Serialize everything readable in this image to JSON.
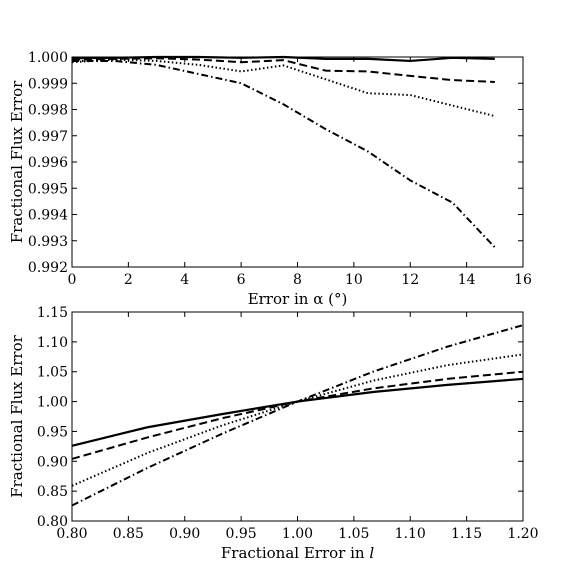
{
  "chart_data": [
    {
      "type": "line",
      "title": "",
      "xlabel_prefix": "Error in ",
      "xlabel_symbol": "α",
      "xlabel_suffix": " (°)",
      "ylabel": "Fractional Flux Error",
      "xlim": [
        0,
        16
      ],
      "ylim": [
        0.992,
        1.0
      ],
      "xticks": [
        0,
        2,
        4,
        6,
        8,
        10,
        12,
        14,
        16
      ],
      "yticks": [
        0.992,
        0.993,
        0.994,
        0.995,
        0.996,
        0.997,
        0.998,
        0.999,
        1.0
      ],
      "xtick_labels": [
        "0",
        "2",
        "4",
        "6",
        "8",
        "10",
        "12",
        "14",
        "16"
      ],
      "ytick_labels": [
        "0.992",
        "0.993",
        "0.994",
        "0.995",
        "0.996",
        "0.997",
        "0.998",
        "0.999",
        "1.000"
      ],
      "grid": false,
      "series": [
        {
          "style": "solid",
          "x": [
            0,
            1.5,
            3,
            4.5,
            6,
            7.5,
            9,
            10.5,
            12,
            13.5,
            15
          ],
          "y": [
            0.99995,
            0.99997,
            1.0,
            1.0,
            0.99997,
            1.0,
            0.99993,
            0.99993,
            0.99985,
            0.99997,
            0.99993
          ]
        },
        {
          "style": "dashed",
          "x": [
            0,
            1.5,
            3,
            4.5,
            6,
            7.5,
            9,
            10.5,
            12,
            13.5,
            15
          ],
          "y": [
            0.9999,
            0.99993,
            0.99995,
            0.9999,
            0.9998,
            0.99988,
            0.99948,
            0.99945,
            0.99928,
            0.99912,
            0.99905
          ]
        },
        {
          "style": "dotted",
          "x": [
            0,
            1.5,
            3,
            4.5,
            6,
            7.5,
            9,
            10.5,
            12,
            13.5,
            15
          ],
          "y": [
            0.9998,
            0.9999,
            0.99985,
            0.9997,
            0.99945,
            0.99968,
            0.99915,
            0.99862,
            0.99855,
            0.99815,
            0.99775
          ]
        },
        {
          "style": "dashdot",
          "x": [
            0,
            1.5,
            3,
            4.5,
            6,
            7.5,
            9,
            10.5,
            12,
            13.5,
            15
          ],
          "y": [
            0.99985,
            0.99985,
            0.9997,
            0.99935,
            0.999,
            0.9982,
            0.99725,
            0.9964,
            0.9953,
            0.99445,
            0.99275
          ]
        }
      ]
    },
    {
      "type": "line",
      "title": "",
      "xlabel_prefix": "Fractional Error in ",
      "xlabel_symbol": "l",
      "xlabel_suffix": "",
      "ylabel": "Fractional Flux Error",
      "xlim": [
        0.8,
        1.2
      ],
      "ylim": [
        0.8,
        1.15
      ],
      "xticks": [
        0.8,
        0.85,
        0.9,
        0.95,
        1.0,
        1.05,
        1.1,
        1.15,
        1.2
      ],
      "yticks": [
        0.8,
        0.85,
        0.9,
        0.95,
        1.0,
        1.05,
        1.1,
        1.15
      ],
      "xtick_labels": [
        "0.80",
        "0.85",
        "0.90",
        "0.95",
        "1.00",
        "1.05",
        "1.10",
        "1.15",
        "1.20"
      ],
      "ytick_labels": [
        "0.80",
        "0.85",
        "0.90",
        "0.95",
        "1.00",
        "1.05",
        "1.10",
        "1.15"
      ],
      "grid": false,
      "series": [
        {
          "style": "solid",
          "x": [
            0.8,
            0.867,
            0.933,
            1.0,
            1.067,
            1.133,
            1.2
          ],
          "y": [
            0.926,
            0.957,
            0.979,
            1.0,
            1.016,
            1.028,
            1.038
          ]
        },
        {
          "style": "dashed",
          "x": [
            0.8,
            0.867,
            0.933,
            1.0,
            1.067,
            1.133,
            1.2
          ],
          "y": [
            0.904,
            0.94,
            0.972,
            1.0,
            1.022,
            1.038,
            1.05
          ]
        },
        {
          "style": "dotted",
          "x": [
            0.8,
            0.867,
            0.933,
            1.0,
            1.067,
            1.133,
            1.2
          ],
          "y": [
            0.859,
            0.914,
            0.96,
            1.0,
            1.035,
            1.061,
            1.079
          ]
        },
        {
          "style": "dashdot",
          "x": [
            0.8,
            0.867,
            0.933,
            1.0,
            1.067,
            1.133,
            1.2
          ],
          "y": [
            0.826,
            0.889,
            0.946,
            1.0,
            1.05,
            1.092,
            1.128
          ]
        }
      ]
    }
  ]
}
